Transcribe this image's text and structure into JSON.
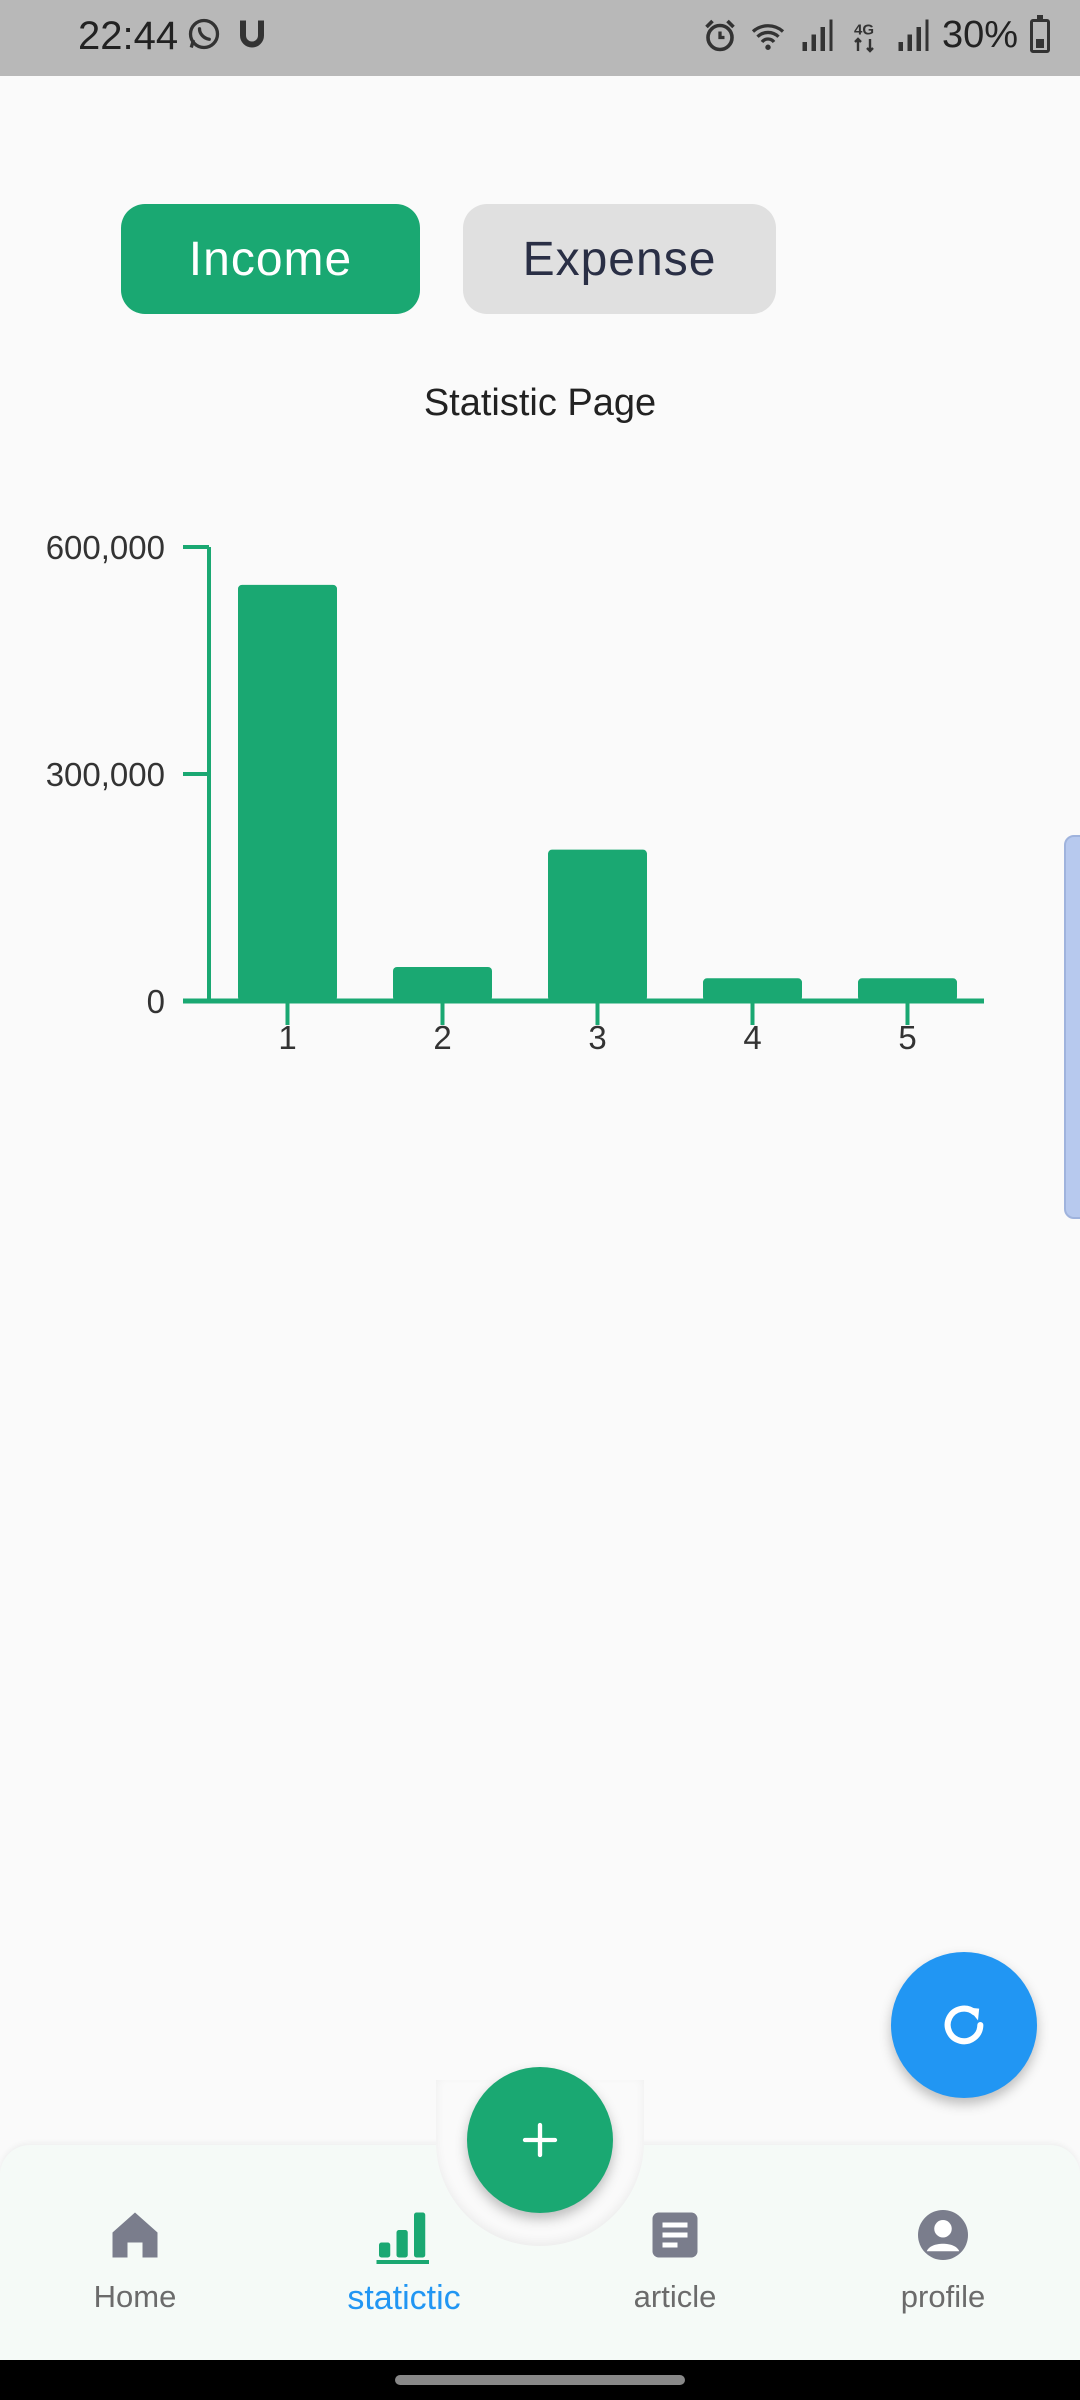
{
  "status_bar": {
    "time": "22:44",
    "battery": "30%",
    "icons_left": [
      "whatsapp-icon",
      "u-icon"
    ],
    "icons_right": [
      "alarm-icon",
      "wifi-icon",
      "signal-icon",
      "4g-icon",
      "signal-icon",
      "battery-icon"
    ]
  },
  "toggle": {
    "income_label": "Income",
    "expense_label": "Expense",
    "active": "income"
  },
  "chart_title": "Statistic Page",
  "chart_data": {
    "type": "bar",
    "title": "Statistic Page",
    "categories": [
      "1",
      "2",
      "3",
      "4",
      "5"
    ],
    "values": [
      550000,
      45000,
      200000,
      30000,
      30000
    ],
    "ylim": [
      0,
      600000
    ],
    "yticks": [
      0,
      300000,
      600000
    ],
    "ytick_labels": [
      "0",
      "300,000",
      "600,000"
    ],
    "color": "#1aa872",
    "grid": false
  },
  "bottom_nav": {
    "items": [
      {
        "label": "Home",
        "icon": "home-icon"
      },
      {
        "label": "statictic",
        "icon": "bar-chart-icon"
      },
      {
        "label": "article",
        "icon": "article-icon"
      },
      {
        "label": "profile",
        "icon": "profile-icon"
      }
    ],
    "active_index": 1
  },
  "fab_add_icon": "plus-icon",
  "fab_refresh_icon": "refresh-icon",
  "colors": {
    "accent_green": "#1aa872",
    "accent_blue": "#2196f3",
    "nav_icon_gray": "#7a7d8c"
  }
}
